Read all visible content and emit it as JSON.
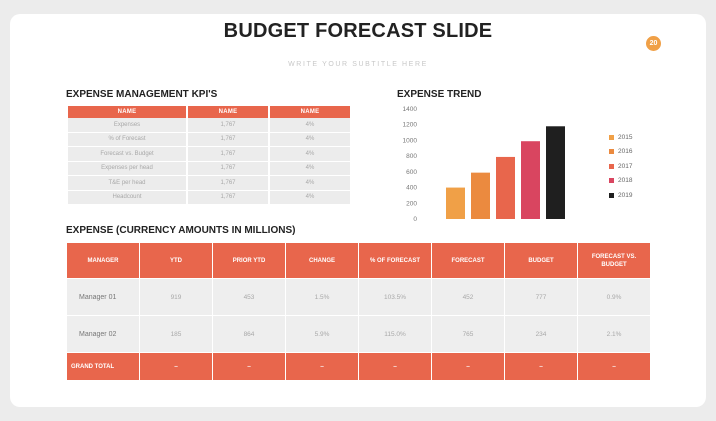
{
  "slide": {
    "title": "BUDGET FORECAST SLIDE",
    "subtitle": "WRITE YOUR SUBTITLE HERE",
    "page_number": "20"
  },
  "kpi": {
    "heading": "EXPENSE MANAGEMENT KPI'S",
    "headers": [
      "NAME",
      "NAME",
      "NAME"
    ],
    "rows": [
      [
        "Expenses",
        "1,767",
        "4%"
      ],
      [
        "% of Forecast",
        "1,767",
        "4%"
      ],
      [
        "Forecast vs. Budget",
        "1,767",
        "4%"
      ],
      [
        "Expenses per head",
        "1,767",
        "4%"
      ],
      [
        "T&E per head",
        "1,767",
        "4%"
      ],
      [
        "Headcount",
        "1,767",
        "4%"
      ]
    ]
  },
  "chart_data": {
    "type": "bar",
    "title": "EXPENSE TREND",
    "categories": [
      "2015",
      "2016",
      "2017",
      "2018",
      "2019"
    ],
    "values": [
      400,
      590,
      790,
      990,
      1180
    ],
    "colors": [
      "#f0a047",
      "#eb8a3f",
      "#e8664c",
      "#d94560",
      "#1f1f1f"
    ],
    "yticks": [
      0,
      200,
      400,
      600,
      800,
      1000,
      1200,
      1400
    ],
    "ylim": [
      0,
      1400
    ],
    "legend": [
      "2015",
      "2016",
      "2017",
      "2018",
      "2019"
    ],
    "legend_position": "right"
  },
  "expense": {
    "heading": "EXPENSE (CURRENCY AMOUNTS IN MILLIONS)",
    "headers": [
      "MANAGER",
      "YTD",
      "PRIOR YTD",
      "CHANGE",
      "% OF FORECAST",
      "FORECAST",
      "BUDGET",
      "FORECAST VS. BUDGET"
    ],
    "rows": [
      [
        "Manager 01",
        "919",
        "453",
        "1.5%",
        "103.5%",
        "452",
        "777",
        "0.9%"
      ],
      [
        "Manager 02",
        "185",
        "864",
        "5.9%",
        "115.0%",
        "765",
        "234",
        "2.1%"
      ]
    ],
    "total": [
      "GRAND TOTAL",
      "–",
      "–",
      "–",
      "–",
      "–",
      "–",
      "–"
    ]
  }
}
